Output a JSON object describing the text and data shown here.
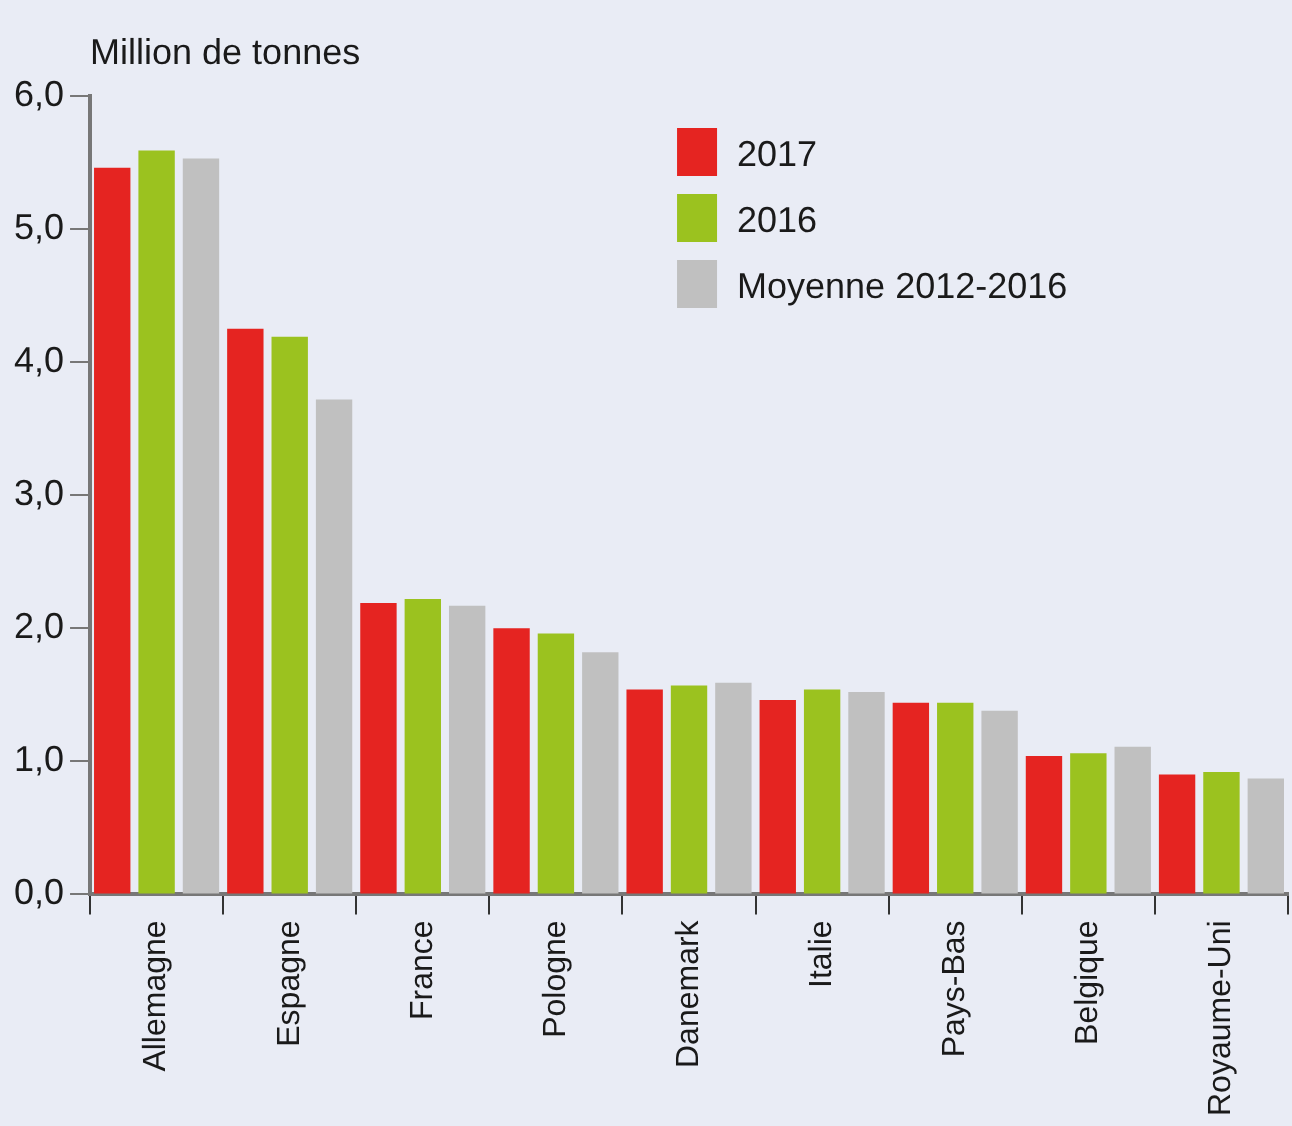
{
  "chart_data": {
    "type": "bar",
    "ylabel": "Million de tonnes",
    "categories": [
      "Allemagne",
      "Espagne",
      "France",
      "Pologne",
      "Danemark",
      "Italie",
      "Pays-Bas",
      "Belgique",
      "Royaume-Uni"
    ],
    "series": [
      {
        "name": "2017",
        "color": "#e52421",
        "values": [
          5.46,
          4.25,
          2.19,
          2.0,
          1.54,
          1.46,
          1.44,
          1.04,
          0.9
        ]
      },
      {
        "name": "2016",
        "color": "#9bc21f",
        "values": [
          5.59,
          4.19,
          2.22,
          1.96,
          1.57,
          1.54,
          1.44,
          1.06,
          0.92
        ]
      },
      {
        "name": "Moyenne 2012-2016",
        "color": "#c0c0c0",
        "values": [
          5.53,
          3.72,
          2.17,
          1.82,
          1.59,
          1.52,
          1.38,
          1.11,
          0.87
        ]
      }
    ],
    "ylim": [
      0,
      6
    ],
    "yticks": [
      {
        "value": 0,
        "label": "0,0"
      },
      {
        "value": 1,
        "label": "1,0"
      },
      {
        "value": 2,
        "label": "2,0"
      },
      {
        "value": 3,
        "label": "3,0"
      },
      {
        "value": 4,
        "label": "4,0"
      },
      {
        "value": 5,
        "label": "5,0"
      },
      {
        "value": 6,
        "label": "6,0"
      }
    ],
    "grid": false,
    "legend": "top right"
  }
}
